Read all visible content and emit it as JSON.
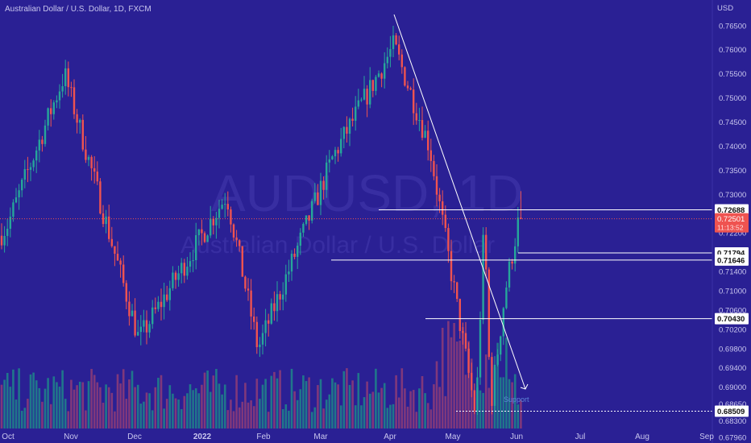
{
  "chart_data": {
    "type": "candlestick",
    "title": "Australian Dollar / U.S. Dollar, 1D, FXCM",
    "watermark_symbol": "AUDUSD, 1D",
    "watermark_name": "Australian Dollar / U.S. Dollar",
    "y_unit": "USD",
    "ylim": [
      0.6785,
      0.7704
    ],
    "y_ticks": [
      "0.76500",
      "0.76000",
      "0.75500",
      "0.75000",
      "0.74500",
      "0.74000",
      "0.73500",
      "0.73000",
      "0.72600",
      "0.72200",
      "0.71800",
      "0.71400",
      "0.71000",
      "0.70600",
      "0.70200",
      "0.69800",
      "0.69400",
      "0.69000",
      "0.68650",
      "0.68300",
      "0.67960"
    ],
    "x_ticks": [
      "Oct",
      "Nov",
      "Dec",
      "2022",
      "Feb",
      "Mar",
      "Apr",
      "May",
      "Jun",
      "Jul",
      "Aug",
      "Sep"
    ],
    "colors": {
      "up": "#26a69a",
      "down": "#ef5350",
      "vol_up": "#1f7f8a",
      "vol_down": "#8a3b78",
      "background": "#2a2094"
    },
    "key_points": [
      {
        "date": "Oct",
        "close": 0.724
      },
      {
        "date": "Oct 28",
        "close": 0.755
      },
      {
        "date": "Dec 3",
        "close": 0.7
      },
      {
        "date": "Jan 13",
        "close": 0.73
      },
      {
        "date": "Jan 28",
        "close": 0.698
      },
      {
        "date": "Mar 7",
        "close": 0.738
      },
      {
        "date": "Apr 4",
        "close": 0.761
      },
      {
        "date": "Apr 21",
        "close": 0.74
      },
      {
        "date": "May 12",
        "close": 0.684
      },
      {
        "date": "May 16",
        "close": 0.725
      },
      {
        "date": "May 19",
        "close": 0.686
      },
      {
        "date": "May 26",
        "close": 0.71
      },
      {
        "date": "Jun 3",
        "close": 0.727
      }
    ],
    "levels": [
      {
        "label": "0.72688",
        "value": 0.72688
      },
      {
        "label": "0.71794",
        "value": 0.71794
      },
      {
        "label": "0.71646",
        "value": 0.71646
      },
      {
        "label": "0.70430",
        "value": 0.7043
      },
      {
        "label": "0.68509",
        "value": 0.68509
      }
    ],
    "current_price": {
      "label": "0.72501",
      "value": 0.72501,
      "countdown": "11:13:52"
    },
    "trendline": {
      "start": {
        "date": "Apr 4",
        "value": 0.767
      },
      "end": {
        "date": "Jun 6",
        "value": 0.687
      }
    },
    "annotation": "Support"
  }
}
